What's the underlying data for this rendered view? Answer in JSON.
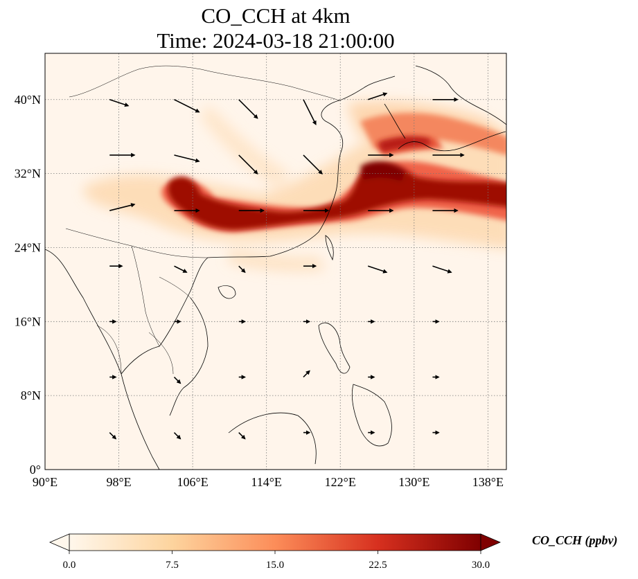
{
  "title": {
    "line1": "CO_CCH at 4km",
    "line2": "Time: 2024-03-18 21:00:00"
  },
  "map": {
    "projection": "PlateCarree",
    "lon_range": [
      90,
      140
    ],
    "lat_range": [
      0,
      45
    ],
    "gridlines": "dotted",
    "lon_ticks": [
      {
        "value": 90,
        "label": "90°E"
      },
      {
        "value": 98,
        "label": "98°E"
      },
      {
        "value": 106,
        "label": "106°E"
      },
      {
        "value": 114,
        "label": "114°E"
      },
      {
        "value": 122,
        "label": "122°E"
      },
      {
        "value": 130,
        "label": "130°E"
      },
      {
        "value": 138,
        "label": "138°E"
      }
    ],
    "lat_ticks": [
      {
        "value": 0,
        "label": "0°"
      },
      {
        "value": 8,
        "label": "8°N"
      },
      {
        "value": 16,
        "label": "16°N"
      },
      {
        "value": 24,
        "label": "24°N"
      },
      {
        "value": 32,
        "label": "32°N"
      },
      {
        "value": 40,
        "label": "40°N"
      }
    ],
    "field": "CO_CCH",
    "level": "4km",
    "plume_core": [
      {
        "lon": 103.0,
        "lat": 30.5,
        "value": 28
      },
      {
        "lon": 106.5,
        "lat": 28.0,
        "value": 30
      },
      {
        "lon": 111.0,
        "lat": 27.5,
        "value": 29
      },
      {
        "lon": 115.0,
        "lat": 27.0,
        "value": 30
      },
      {
        "lon": 119.0,
        "lat": 27.5,
        "value": 28
      },
      {
        "lon": 123.0,
        "lat": 28.5,
        "value": 29
      },
      {
        "lon": 126.0,
        "lat": 31.0,
        "value": 30
      },
      {
        "lon": 130.0,
        "lat": 30.5,
        "value": 27
      },
      {
        "lon": 135.0,
        "lat": 30.0,
        "value": 28
      },
      {
        "lon": 139.0,
        "lat": 29.5,
        "value": 30
      },
      {
        "lon": 127.0,
        "lat": 36.0,
        "value": 20
      },
      {
        "lon": 133.0,
        "lat": 35.5,
        "value": 24
      }
    ],
    "wind_vectors_sample": [
      {
        "lon": 97,
        "lat": 40,
        "u": 3,
        "v": -1
      },
      {
        "lon": 104,
        "lat": 40,
        "u": 4,
        "v": -2
      },
      {
        "lon": 111,
        "lat": 40,
        "u": 3,
        "v": -3
      },
      {
        "lon": 118,
        "lat": 40,
        "u": 2,
        "v": -4
      },
      {
        "lon": 125,
        "lat": 40,
        "u": 3,
        "v": 1
      },
      {
        "lon": 132,
        "lat": 40,
        "u": 4,
        "v": 0
      },
      {
        "lon": 97,
        "lat": 34,
        "u": 4,
        "v": 0
      },
      {
        "lon": 104,
        "lat": 34,
        "u": 4,
        "v": -1
      },
      {
        "lon": 111,
        "lat": 34,
        "u": 3,
        "v": -3
      },
      {
        "lon": 118,
        "lat": 34,
        "u": 3,
        "v": -3
      },
      {
        "lon": 125,
        "lat": 34,
        "u": 4,
        "v": 0
      },
      {
        "lon": 132,
        "lat": 34,
        "u": 5,
        "v": 0
      },
      {
        "lon": 97,
        "lat": 28,
        "u": 4,
        "v": 1
      },
      {
        "lon": 104,
        "lat": 28,
        "u": 4,
        "v": 0
      },
      {
        "lon": 111,
        "lat": 28,
        "u": 4,
        "v": 0
      },
      {
        "lon": 118,
        "lat": 28,
        "u": 4,
        "v": 0
      },
      {
        "lon": 125,
        "lat": 28,
        "u": 4,
        "v": 0
      },
      {
        "lon": 132,
        "lat": 28,
        "u": 4,
        "v": 0
      },
      {
        "lon": 97,
        "lat": 22,
        "u": 2,
        "v": 0
      },
      {
        "lon": 104,
        "lat": 22,
        "u": 2,
        "v": -1
      },
      {
        "lon": 111,
        "lat": 22,
        "u": 1,
        "v": -1
      },
      {
        "lon": 118,
        "lat": 22,
        "u": 2,
        "v": 0
      },
      {
        "lon": 125,
        "lat": 22,
        "u": 3,
        "v": -1
      },
      {
        "lon": 132,
        "lat": 22,
        "u": 3,
        "v": -1
      },
      {
        "lon": 97,
        "lat": 16,
        "u": 1,
        "v": 0
      },
      {
        "lon": 104,
        "lat": 16,
        "u": 1,
        "v": 0
      },
      {
        "lon": 111,
        "lat": 16,
        "u": 1,
        "v": 0
      },
      {
        "lon": 118,
        "lat": 16,
        "u": 1,
        "v": 0
      },
      {
        "lon": 125,
        "lat": 16,
        "u": 1,
        "v": 0
      },
      {
        "lon": 132,
        "lat": 16,
        "u": 1,
        "v": 0
      },
      {
        "lon": 97,
        "lat": 10,
        "u": 1,
        "v": 0
      },
      {
        "lon": 104,
        "lat": 10,
        "u": 1,
        "v": -1
      },
      {
        "lon": 111,
        "lat": 10,
        "u": 1,
        "v": 0
      },
      {
        "lon": 118,
        "lat": 10,
        "u": 1,
        "v": 1
      },
      {
        "lon": 125,
        "lat": 10,
        "u": 1,
        "v": 0
      },
      {
        "lon": 132,
        "lat": 10,
        "u": 1,
        "v": 0
      },
      {
        "lon": 97,
        "lat": 4,
        "u": 1,
        "v": -1
      },
      {
        "lon": 104,
        "lat": 4,
        "u": 1,
        "v": -1
      },
      {
        "lon": 111,
        "lat": 4,
        "u": 1,
        "v": -1
      },
      {
        "lon": 118,
        "lat": 4,
        "u": 1,
        "v": 0
      },
      {
        "lon": 125,
        "lat": 4,
        "u": 1,
        "v": 0
      },
      {
        "lon": 132,
        "lat": 4,
        "u": 1,
        "v": 0
      }
    ]
  },
  "colorbar": {
    "colormap": "OrRd",
    "min": 0.0,
    "max": 30.0,
    "extend": "both",
    "ticks": [
      {
        "value": 0.0,
        "label": "0.0"
      },
      {
        "value": 7.5,
        "label": "7.5"
      },
      {
        "value": 15.0,
        "label": "15.0"
      },
      {
        "value": 22.5,
        "label": "22.5"
      },
      {
        "value": 30.0,
        "label": "30.0"
      }
    ],
    "label": "CO_CCH (ppbv)",
    "colors": [
      "#fff7ec",
      "#fdd49e",
      "#fc8d59",
      "#d7301f",
      "#7f0000"
    ]
  }
}
